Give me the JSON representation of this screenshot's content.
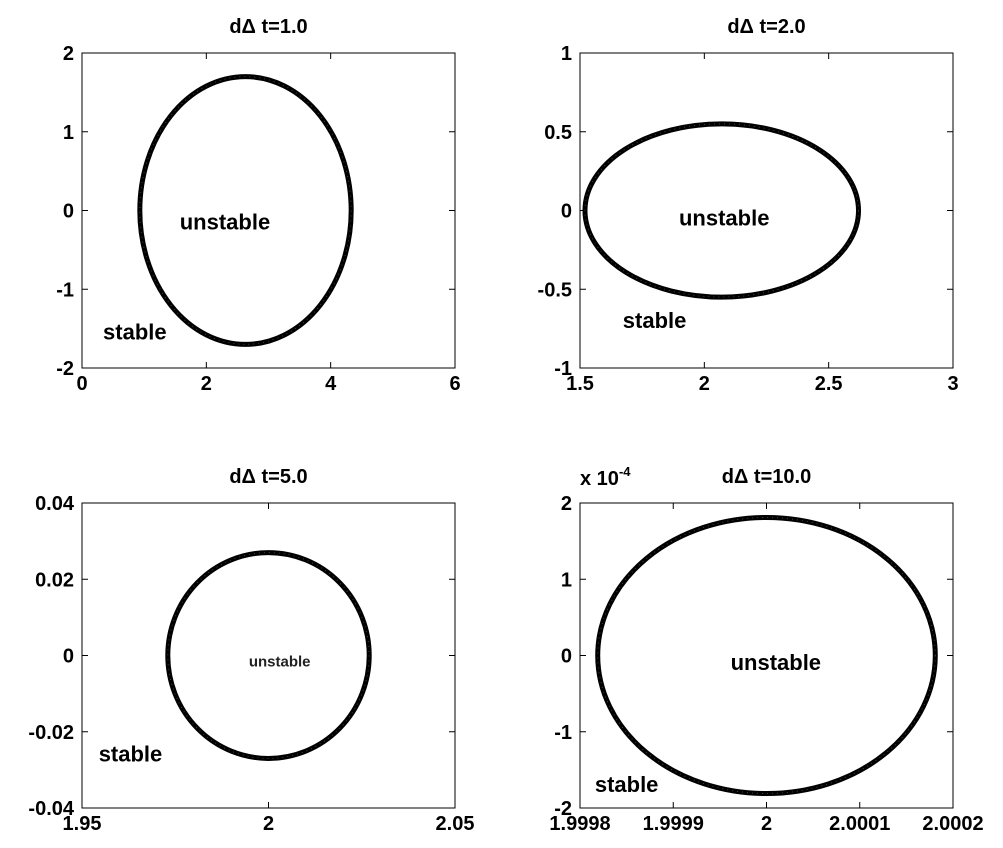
{
  "chart_data": [
    {
      "type": "line",
      "title": "dΔ t=1.0",
      "xlim": [
        0,
        6
      ],
      "ylim": [
        -2,
        2
      ],
      "xticks": [
        0,
        2,
        4,
        6
      ],
      "xtick_labels": [
        "0",
        "2",
        "4",
        "6"
      ],
      "yticks": [
        -2,
        -1,
        0,
        1,
        2
      ],
      "ytick_labels": [
        "-2",
        "-1",
        "0",
        "1",
        "2"
      ],
      "curve": {
        "shape": "ellipse",
        "center": [
          2.63,
          0
        ],
        "x_radius": 1.7,
        "y_radius": 1.7,
        "x_extent": [
          0.93,
          4.33
        ],
        "y_extent": [
          -1.7,
          1.7
        ]
      },
      "annotations": [
        {
          "text": "unstable",
          "x": 2.3,
          "y": -0.15
        },
        {
          "text": "stable",
          "x": 0.85,
          "y": -1.55
        }
      ]
    },
    {
      "type": "line",
      "title": "dΔ t=2.0",
      "xlim": [
        1.5,
        3
      ],
      "ylim": [
        -1,
        1
      ],
      "xticks": [
        1.5,
        2,
        2.5,
        3
      ],
      "xtick_labels": [
        "1.5",
        "2",
        "2.5",
        "3"
      ],
      "yticks": [
        -1,
        -0.5,
        0,
        0.5,
        1
      ],
      "ytick_labels": [
        "-1",
        "-0.5",
        "0",
        "0.5",
        "1"
      ],
      "curve": {
        "shape": "ellipse",
        "center": [
          2.07,
          0
        ],
        "x_radius": 0.55,
        "y_radius": 0.55,
        "x_extent": [
          1.52,
          2.62
        ],
        "y_extent": [
          -0.55,
          0.55
        ]
      },
      "annotations": [
        {
          "text": "unstable",
          "x": 2.08,
          "y": -0.05
        },
        {
          "text": "stable",
          "x": 1.8,
          "y": -0.7
        }
      ]
    },
    {
      "type": "line",
      "title": "dΔ t=5.0",
      "xlim": [
        1.95,
        2.05
      ],
      "ylim": [
        -0.04,
        0.04
      ],
      "xticks": [
        1.95,
        2,
        2.05
      ],
      "xtick_labels": [
        "1.95",
        "2",
        "2.05"
      ],
      "yticks": [
        -0.04,
        -0.02,
        0,
        0.02,
        0.04
      ],
      "ytick_labels": [
        "-0.04",
        "-0.02",
        "0",
        "0.02",
        "0.04"
      ],
      "curve": {
        "shape": "ellipse",
        "center": [
          2.0,
          0
        ],
        "x_radius": 0.027,
        "y_radius": 0.027,
        "x_extent": [
          1.973,
          2.027
        ],
        "y_extent": [
          -0.027,
          0.027
        ]
      },
      "annotations": [
        {
          "text": "unstable",
          "x": 2.003,
          "y": -0.001,
          "small": true
        },
        {
          "text": "stable",
          "x": 1.963,
          "y": -0.026
        }
      ]
    },
    {
      "type": "line",
      "title": "dΔ t=10.0",
      "y_multiplier": "x 10",
      "y_multiplier_exponent": "-4",
      "xlim": [
        1.9998,
        2.0002
      ],
      "ylim": [
        -2,
        2
      ],
      "xticks": [
        1.9998,
        1.9999,
        2,
        2.0001,
        2.0002
      ],
      "xtick_labels": [
        "1.9998",
        "1.9999",
        "2",
        "2.0001",
        "2.0002"
      ],
      "yticks": [
        -2,
        -1,
        0,
        1,
        2
      ],
      "ytick_labels": [
        "-2",
        "-1",
        "0",
        "1",
        "2"
      ],
      "curve": {
        "shape": "ellipse",
        "center": [
          2.0,
          0
        ],
        "x_radius": 0.000181,
        "y_radius": 1.81,
        "x_extent": [
          1.999819,
          2.000181
        ],
        "y_extent": [
          -1.81,
          1.81
        ]
      },
      "annotations": [
        {
          "text": "unstable",
          "x": 2.00001,
          "y": -0.1
        },
        {
          "text": "stable",
          "x": 1.99985,
          "y": -1.7
        }
      ]
    }
  ]
}
